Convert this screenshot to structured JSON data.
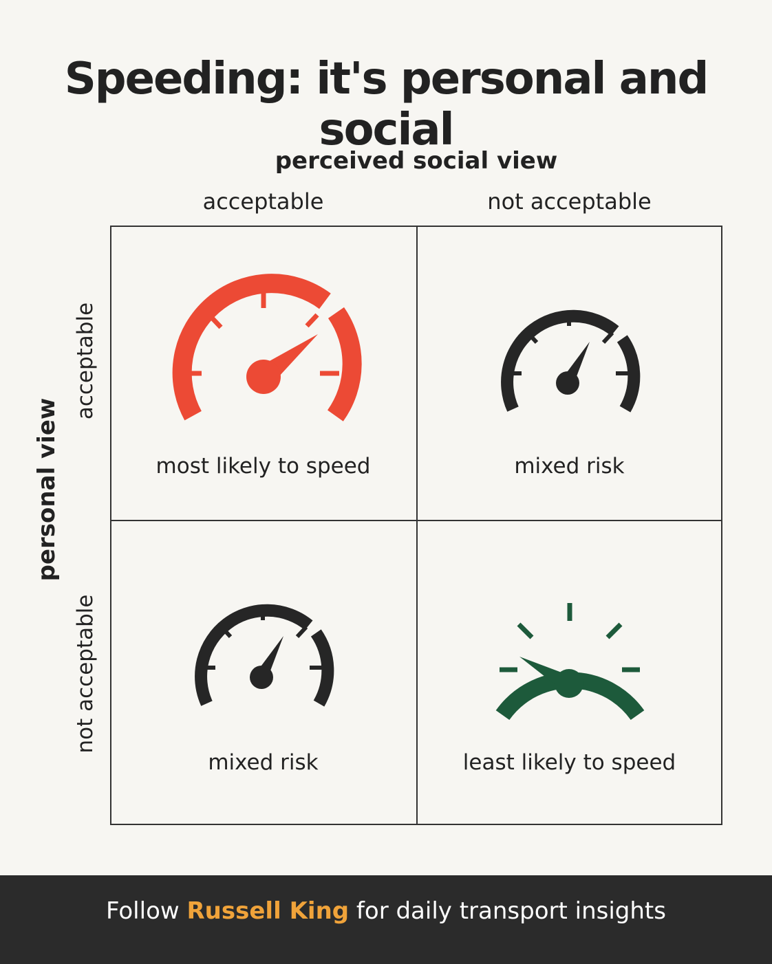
{
  "title": "Speeding: it's personal and social",
  "axes": {
    "top": "perceived social view",
    "side": "personal view",
    "columns": [
      "acceptable",
      "not acceptable"
    ],
    "rows": [
      "acceptable",
      "not acceptable"
    ]
  },
  "cells": [
    {
      "label": "most likely to speed",
      "gauge_color": "#ec4a35",
      "needle_level": "high"
    },
    {
      "label": "mixed risk",
      "gauge_color": "#262626",
      "needle_level": "medium"
    },
    {
      "label": "mixed risk",
      "gauge_color": "#262626",
      "needle_level": "medium"
    },
    {
      "label": "least likely to speed",
      "gauge_color": "#1d5a3b",
      "needle_level": "low"
    }
  ],
  "footer": {
    "prefix": "Follow",
    "name": "Russell King",
    "suffix": "for daily transport insights"
  },
  "colors": {
    "background": "#f7f6f2",
    "footer_background": "#2b2b2b",
    "accent": "#f0a33a"
  }
}
